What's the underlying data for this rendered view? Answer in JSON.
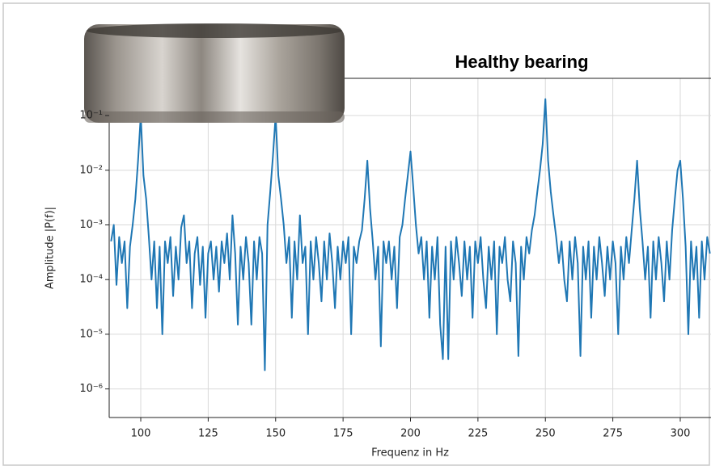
{
  "chart_data": {
    "type": "line",
    "title": "Healthy bearing",
    "xlabel": "Frequenz in Hz",
    "ylabel": "Amplitude |P(f)|",
    "xlim": [
      88.3,
      311.4
    ],
    "ylim": [
      3e-07,
      0.48
    ],
    "log_y": true,
    "grid": true,
    "xticks": [
      100,
      125,
      150,
      175,
      200,
      225,
      250,
      275,
      300
    ],
    "yticks": [
      {
        "value": 1e-06,
        "label": "10⁻⁶"
      },
      {
        "value": 1e-05,
        "label": "10⁻⁵"
      },
      {
        "value": 0.0001,
        "label": "10⁻⁴"
      },
      {
        "value": 0.001,
        "label": "10⁻³"
      },
      {
        "value": 0.01,
        "label": "10⁻²"
      },
      {
        "value": 0.1,
        "label": "10⁻¹"
      }
    ],
    "series": [
      {
        "color": "#1f77b4",
        "x": [
          89,
          90,
          91,
          92,
          93,
          94,
          95,
          96,
          97,
          98,
          99,
          100,
          101,
          102,
          103,
          104,
          105,
          106,
          107,
          108,
          109,
          110,
          111,
          112,
          113,
          114,
          115,
          116,
          117,
          118,
          119,
          120,
          121,
          122,
          123,
          124,
          125,
          126,
          127,
          128,
          129,
          130,
          131,
          132,
          133,
          134,
          135,
          136,
          137,
          138,
          139,
          140,
          141,
          142,
          143,
          144,
          145,
          146,
          147,
          148,
          149,
          150,
          151,
          152,
          153,
          154,
          155,
          156,
          157,
          158,
          159,
          160,
          161,
          162,
          163,
          164,
          165,
          166,
          167,
          168,
          169,
          170,
          171,
          172,
          173,
          174,
          175,
          176,
          177,
          178,
          179,
          180,
          181,
          182,
          183,
          184,
          185,
          186,
          187,
          188,
          189,
          190,
          191,
          192,
          193,
          194,
          195,
          196,
          197,
          198,
          199,
          200,
          201,
          202,
          203,
          204,
          205,
          206,
          207,
          208,
          209,
          210,
          211,
          212,
          213,
          214,
          215,
          216,
          217,
          218,
          219,
          220,
          221,
          222,
          223,
          224,
          225,
          226,
          227,
          228,
          229,
          230,
          231,
          232,
          233,
          234,
          235,
          236,
          237,
          238,
          239,
          240,
          241,
          242,
          243,
          244,
          245,
          246,
          247,
          248,
          249,
          250,
          251,
          252,
          253,
          254,
          255,
          256,
          257,
          258,
          259,
          260,
          261,
          262,
          263,
          264,
          265,
          266,
          267,
          268,
          269,
          270,
          271,
          272,
          273,
          274,
          275,
          276,
          277,
          278,
          279,
          280,
          281,
          282,
          283,
          284,
          285,
          286,
          287,
          288,
          289,
          290,
          291,
          292,
          293,
          294,
          295,
          296,
          297,
          298,
          299,
          300,
          301,
          302,
          303,
          304,
          305,
          306,
          307,
          308,
          309,
          310,
          311
        ],
        "values": [
          0.0005,
          0.001,
          8e-05,
          0.0006,
          0.0002,
          0.0005,
          3e-05,
          0.0004,
          0.001,
          0.003,
          0.015,
          0.1,
          0.008,
          0.003,
          0.0006,
          0.0001,
          0.0005,
          3e-05,
          0.0004,
          1e-05,
          0.0005,
          0.0002,
          0.0006,
          5e-05,
          0.0004,
          0.0001,
          0.0009,
          0.0015,
          0.0002,
          0.0005,
          3e-05,
          0.0003,
          0.0006,
          8e-05,
          0.0004,
          2e-05,
          0.0003,
          0.0005,
          0.0001,
          0.0004,
          6e-05,
          0.0005,
          0.0002,
          0.0007,
          0.0001,
          0.0015,
          0.0003,
          1.5e-05,
          0.0004,
          0.0001,
          0.0006,
          0.0002,
          1.5e-05,
          0.0005,
          0.0001,
          0.0006,
          0.0003,
          2.2e-06,
          0.001,
          0.004,
          0.018,
          0.1,
          0.008,
          0.003,
          0.001,
          0.0002,
          0.0006,
          2e-05,
          0.0005,
          0.0001,
          0.0015,
          0.0002,
          0.0004,
          1e-05,
          0.0005,
          0.0001,
          0.0006,
          0.0002,
          4e-05,
          0.0005,
          0.0001,
          0.0007,
          0.0002,
          3e-05,
          0.0004,
          0.0001,
          0.0005,
          0.0002,
          0.0006,
          1e-05,
          0.0004,
          0.0002,
          0.0005,
          0.0008,
          0.003,
          0.015,
          0.002,
          0.0005,
          0.0001,
          0.0004,
          6e-06,
          0.0005,
          0.0002,
          0.0005,
          0.0001,
          0.0004,
          3e-05,
          0.0006,
          0.001,
          0.003,
          0.008,
          0.022,
          0.005,
          0.001,
          0.0003,
          0.0006,
          0.0001,
          0.0005,
          2e-05,
          0.0004,
          0.0001,
          0.0006,
          1.5e-05,
          3.5e-06,
          0.0004,
          3.5e-06,
          0.0005,
          0.0001,
          0.0006,
          0.0002,
          5e-05,
          0.0005,
          0.0001,
          0.0004,
          2e-05,
          0.0005,
          0.0002,
          0.0006,
          0.0001,
          3e-05,
          0.0004,
          0.0001,
          0.0005,
          1e-05,
          0.0004,
          0.0002,
          0.0006,
          0.0001,
          4e-05,
          0.0005,
          0.0002,
          4e-06,
          0.0004,
          0.0001,
          0.0006,
          0.0003,
          0.0008,
          0.0015,
          0.004,
          0.01,
          0.03,
          0.2,
          0.015,
          0.004,
          0.0015,
          0.0006,
          0.0002,
          0.0005,
          0.0001,
          4e-05,
          0.0005,
          0.0001,
          0.0006,
          0.0002,
          4e-06,
          0.0004,
          0.0001,
          0.0005,
          2e-05,
          0.0004,
          0.0001,
          0.0006,
          0.0002,
          5e-05,
          0.0004,
          0.0001,
          0.0005,
          0.0002,
          1e-05,
          0.0004,
          0.0001,
          0.0006,
          0.0002,
          0.0008,
          0.003,
          0.015,
          0.002,
          0.0005,
          0.0001,
          0.0004,
          2e-05,
          0.0005,
          0.0001,
          0.0006,
          0.0002,
          4e-05,
          0.0005,
          0.0001,
          0.0008,
          0.003,
          0.01,
          0.015,
          0.003,
          0.0004,
          1e-05,
          0.0005,
          0.0001,
          0.0004,
          2e-05,
          0.0005,
          0.0001,
          0.0006,
          0.0003
        ]
      }
    ]
  }
}
